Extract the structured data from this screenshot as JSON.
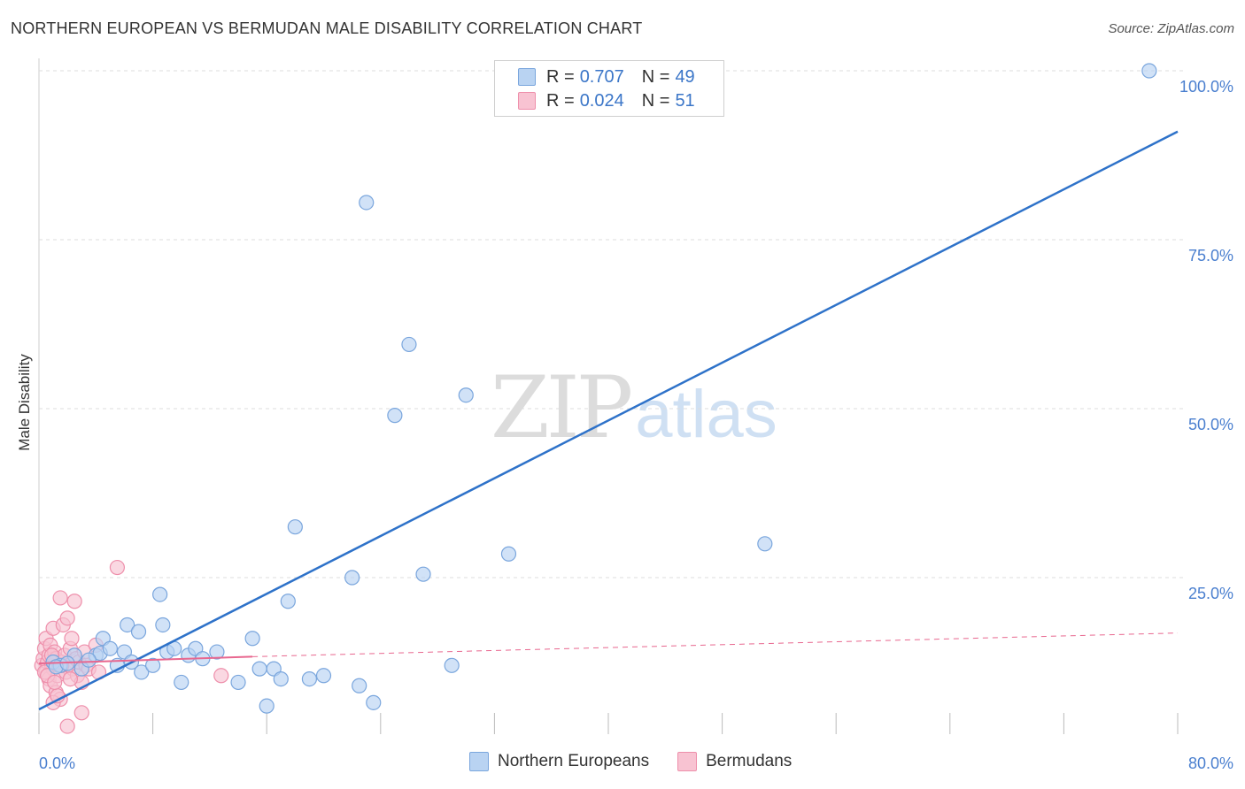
{
  "header": {
    "title": "NORTHERN EUROPEAN VS BERMUDAN MALE DISABILITY CORRELATION CHART",
    "source": "Source: ZipAtlas.com"
  },
  "legend": {
    "r_label": "R =",
    "n_label": "N =",
    "series": [
      {
        "name": "Northern Europeans",
        "r": "0.707",
        "n": "49"
      },
      {
        "name": "Bermudans",
        "r": "0.024",
        "n": "51"
      }
    ]
  },
  "watermark": {
    "zip": "ZIP",
    "atlas": "atlas"
  },
  "colors": {
    "blue_fill": "#b9d3f2",
    "blue_stroke": "#7aa6dd",
    "blue_line": "#2e72c9",
    "pink_fill": "#f8c3d2",
    "pink_stroke": "#ee8fab",
    "pink_line": "#e8678f",
    "grid": "#dddddd",
    "tick_label": "#4a7fcf"
  },
  "chart_data": {
    "type": "scatter",
    "title": "NORTHERN EUROPEAN VS BERMUDAN MALE DISABILITY CORRELATION CHART",
    "xlabel": "",
    "ylabel": "Male Disability",
    "xlim": [
      0,
      80
    ],
    "ylim": [
      0,
      105
    ],
    "x_tick_labels": [
      "0.0%",
      "80.0%"
    ],
    "y_ticks": [
      25,
      50,
      75,
      100
    ],
    "y_tick_labels": [
      "25.0%",
      "50.0%",
      "75.0%",
      "100.0%"
    ],
    "grid": true,
    "series": [
      {
        "name": "Northern Europeans",
        "color": "#b9d3f2",
        "points": [
          [
            1.0,
            12.5
          ],
          [
            1.5,
            12.0
          ],
          [
            2.5,
            13.5
          ],
          [
            3.0,
            11.5
          ],
          [
            4.0,
            13.5
          ],
          [
            4.3,
            13.8
          ],
          [
            4.5,
            16.0
          ],
          [
            5.0,
            14.5
          ],
          [
            5.5,
            12.0
          ],
          [
            6.0,
            14.0
          ],
          [
            6.2,
            18.0
          ],
          [
            6.5,
            12.5
          ],
          [
            7.0,
            17.0
          ],
          [
            7.2,
            11.0
          ],
          [
            8.0,
            12.0
          ],
          [
            8.5,
            22.5
          ],
          [
            8.7,
            18.0
          ],
          [
            9.0,
            14.0
          ],
          [
            9.5,
            14.5
          ],
          [
            10.0,
            9.5
          ],
          [
            10.5,
            13.5
          ],
          [
            11.0,
            14.5
          ],
          [
            11.5,
            13.0
          ],
          [
            12.5,
            14.0
          ],
          [
            14.0,
            9.5
          ],
          [
            15.0,
            16.0
          ],
          [
            15.5,
            11.5
          ],
          [
            16.0,
            6.0
          ],
          [
            16.5,
            11.5
          ],
          [
            17.0,
            10.0
          ],
          [
            17.5,
            21.5
          ],
          [
            18.0,
            32.5
          ],
          [
            19.0,
            10.0
          ],
          [
            20.0,
            10.5
          ],
          [
            22.0,
            25.0
          ],
          [
            22.5,
            9.0
          ],
          [
            23.0,
            80.5
          ],
          [
            23.5,
            6.5
          ],
          [
            25.0,
            49.0
          ],
          [
            26.0,
            59.5
          ],
          [
            27.0,
            25.5
          ],
          [
            29.0,
            12.0
          ],
          [
            30.0,
            52.0
          ],
          [
            33.0,
            28.5
          ],
          [
            51.0,
            30.0
          ],
          [
            78.0,
            100.0
          ],
          [
            1.2,
            11.8
          ],
          [
            2.0,
            12.3
          ],
          [
            3.5,
            12.8
          ]
        ]
      },
      {
        "name": "Bermudans",
        "color": "#f8c3d2",
        "points": [
          [
            0.2,
            12.0
          ],
          [
            0.3,
            13.0
          ],
          [
            0.4,
            14.5
          ],
          [
            0.5,
            11.0
          ],
          [
            0.5,
            16.0
          ],
          [
            0.6,
            12.5
          ],
          [
            0.7,
            13.5
          ],
          [
            0.7,
            10.0
          ],
          [
            0.8,
            15.0
          ],
          [
            0.8,
            9.0
          ],
          [
            0.9,
            12.0
          ],
          [
            1.0,
            11.5
          ],
          [
            1.0,
            17.5
          ],
          [
            1.1,
            14.0
          ],
          [
            1.2,
            8.0
          ],
          [
            1.2,
            13.0
          ],
          [
            1.3,
            10.5
          ],
          [
            1.4,
            12.0
          ],
          [
            1.5,
            22.0
          ],
          [
            1.5,
            7.0
          ],
          [
            1.6,
            12.5
          ],
          [
            1.7,
            18.0
          ],
          [
            1.8,
            13.5
          ],
          [
            1.9,
            11.0
          ],
          [
            2.0,
            19.0
          ],
          [
            2.0,
            3.0
          ],
          [
            2.1,
            12.0
          ],
          [
            2.2,
            14.5
          ],
          [
            2.3,
            16.0
          ],
          [
            2.4,
            11.5
          ],
          [
            2.5,
            21.5
          ],
          [
            2.6,
            13.0
          ],
          [
            2.7,
            10.5
          ],
          [
            2.8,
            12.5
          ],
          [
            3.0,
            9.5
          ],
          [
            3.0,
            5.0
          ],
          [
            3.2,
            14.0
          ],
          [
            3.3,
            12.0
          ],
          [
            3.5,
            11.5
          ],
          [
            4.0,
            15.0
          ],
          [
            4.2,
            11.0
          ],
          [
            5.5,
            26.5
          ],
          [
            12.8,
            10.5
          ],
          [
            1.0,
            6.5
          ],
          [
            1.3,
            7.5
          ],
          [
            0.4,
            11.0
          ],
          [
            0.6,
            10.5
          ],
          [
            0.9,
            13.5
          ],
          [
            1.1,
            9.5
          ],
          [
            1.6,
            12.0
          ],
          [
            2.2,
            10.0
          ]
        ]
      }
    ],
    "trend_lines": [
      {
        "series": "Northern Europeans",
        "from": [
          0,
          5.5
        ],
        "to": [
          80,
          91.0
        ],
        "style": "solid"
      },
      {
        "series": "Bermudans",
        "from": [
          0,
          12.3
        ],
        "to": [
          15,
          13.3
        ],
        "style": "solid"
      },
      {
        "series": "Bermudans",
        "from": [
          15,
          13.3
        ],
        "to": [
          80,
          16.8
        ],
        "style": "dashed"
      }
    ]
  }
}
